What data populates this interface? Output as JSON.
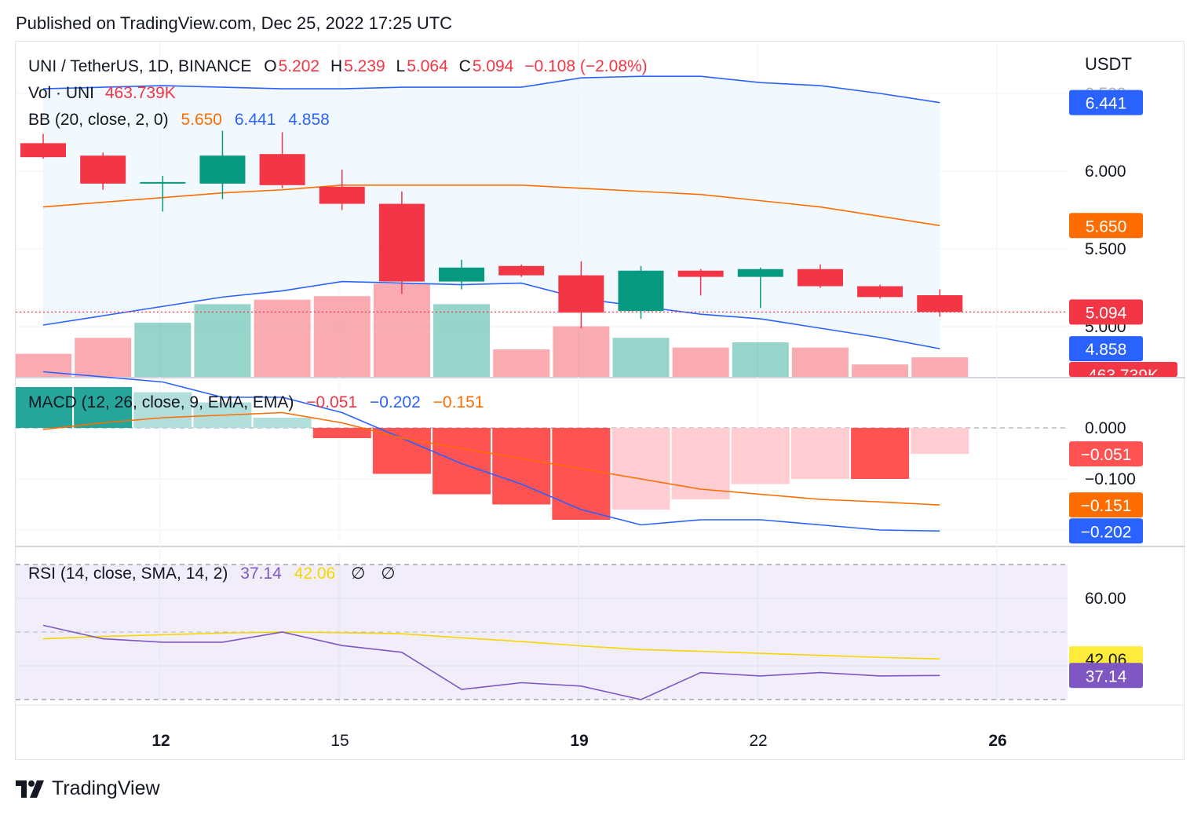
{
  "published": "Published on TradingView.com, Dec 25, 2022 17:25 UTC",
  "brand": "TradingView",
  "currency": "USDT",
  "legend": {
    "symbol": "UNI / TetherUS, 1D, BINANCE",
    "o_label": "O",
    "o_val": "5.202",
    "h_label": "H",
    "h_val": "5.239",
    "l_label": "L",
    "l_val": "5.064",
    "c_label": "C",
    "c_val": "5.094",
    "change": "−0.108 (−2.08%)",
    "vol_label": "Vol · UNI",
    "vol_val": "463.739K",
    "bb_label": "BB (20, close, 2, 0)",
    "bb_basis": "5.650",
    "bb_upper": "6.441",
    "bb_lower": "4.858",
    "macd_label": "MACD (12, 26, close, 9, EMA, EMA)",
    "macd_hist": "−0.051",
    "macd_line": "−0.202",
    "macd_signal": "−0.151",
    "rsi_label": "RSI (14, close, SMA, 14, 2)",
    "rsi_val": "37.14",
    "rsi_ma": "42.06",
    "rsi_na1": "∅",
    "rsi_na2": "∅"
  },
  "colors": {
    "up": "#089981",
    "down": "#f23645",
    "bb_basis": "#ff6d00",
    "bb_bands": "#2962ff",
    "macd": "#2962ff",
    "signal": "#ff6d00",
    "rsi": "#7e57c2",
    "rsi_ma": "#f5d700"
  },
  "chart_data": {
    "type": "candlestick",
    "x_ticks": [
      "12",
      "15",
      "19",
      "22",
      "26"
    ],
    "price_axis": {
      "ticks": [
        "6.000",
        "5.500",
        "5.000"
      ],
      "partial_tick": "6.500"
    },
    "macd_axis": {
      "ticks": [
        "0.000",
        "−0.100"
      ]
    },
    "rsi_axis": {
      "ticks": [
        "60.00"
      ]
    },
    "price_badges": {
      "upper": "6.441",
      "basis": "5.650",
      "close": "5.094",
      "lower": "4.858",
      "volume": "463.739K"
    },
    "macd_badges": {
      "hist": "−0.051",
      "signal": "−0.151",
      "macd": "−0.202"
    },
    "rsi_badges": {
      "ma": "42.06",
      "rsi": "37.14"
    },
    "candles": [
      {
        "o": 6.18,
        "h": 6.24,
        "l": 6.08,
        "c": 6.09
      },
      {
        "o": 6.1,
        "h": 6.12,
        "l": 5.88,
        "c": 5.92
      },
      {
        "o": 5.92,
        "h": 5.97,
        "l": 5.74,
        "c": 5.93
      },
      {
        "o": 5.92,
        "h": 6.26,
        "l": 5.82,
        "c": 6.1
      },
      {
        "o": 6.11,
        "h": 6.25,
        "l": 5.89,
        "c": 5.91
      },
      {
        "o": 5.9,
        "h": 6.01,
        "l": 5.75,
        "c": 5.79
      },
      {
        "o": 5.79,
        "h": 5.87,
        "l": 5.21,
        "c": 5.29
      },
      {
        "o": 5.29,
        "h": 5.43,
        "l": 5.24,
        "c": 5.38
      },
      {
        "o": 5.39,
        "h": 5.4,
        "l": 5.32,
        "c": 5.33
      },
      {
        "o": 5.33,
        "h": 5.42,
        "l": 4.99,
        "c": 5.09
      },
      {
        "o": 5.1,
        "h": 5.39,
        "l": 5.05,
        "c": 5.36
      },
      {
        "o": 5.36,
        "h": 5.37,
        "l": 5.2,
        "c": 5.32
      },
      {
        "o": 5.32,
        "h": 5.38,
        "l": 5.12,
        "c": 5.37
      },
      {
        "o": 5.37,
        "h": 5.4,
        "l": 5.25,
        "c": 5.26
      },
      {
        "o": 5.26,
        "h": 5.27,
        "l": 5.18,
        "c": 5.19
      },
      {
        "o": 5.202,
        "h": 5.239,
        "l": 5.064,
        "c": 5.094
      }
    ],
    "volume": [
      1.3,
      2.2,
      3.05,
      4.1,
      4.35,
      4.55,
      5.25,
      4.1,
      1.55,
      2.85,
      2.2,
      1.65,
      1.95,
      1.65,
      0.7,
      1.1
    ],
    "bb_upper": [
      6.53,
      6.54,
      6.55,
      6.54,
      6.53,
      6.53,
      6.54,
      6.54,
      6.54,
      6.6,
      6.61,
      6.61,
      6.57,
      6.55,
      6.5,
      6.441
    ],
    "bb_basis": [
      5.77,
      5.8,
      5.83,
      5.86,
      5.88,
      5.91,
      5.91,
      5.91,
      5.91,
      5.89,
      5.87,
      5.85,
      5.81,
      5.77,
      5.71,
      5.65
    ],
    "bb_lower": [
      5.01,
      5.07,
      5.13,
      5.19,
      5.23,
      5.29,
      5.28,
      5.27,
      5.28,
      5.18,
      5.13,
      5.08,
      5.05,
      4.99,
      4.93,
      4.858
    ],
    "macd_hist": [
      0.08,
      0.08,
      0.07,
      0.05,
      0.02,
      -0.02,
      -0.09,
      -0.13,
      -0.15,
      -0.18,
      -0.16,
      -0.14,
      -0.11,
      -0.1,
      -0.1,
      -0.051
    ],
    "macd_line": [
      0.11,
      0.1,
      0.09,
      0.06,
      0.06,
      0.03,
      -0.02,
      -0.07,
      -0.11,
      -0.16,
      -0.19,
      -0.18,
      -0.18,
      -0.19,
      -0.2,
      -0.202
    ],
    "macd_signal": [
      -0.003,
      0.01,
      0.02,
      0.025,
      0.03,
      0.01,
      -0.02,
      -0.04,
      -0.06,
      -0.08,
      -0.1,
      -0.12,
      -0.13,
      -0.14,
      -0.145,
      -0.151
    ],
    "rsi": [
      52,
      48,
      47,
      47,
      50,
      46,
      44,
      33,
      35,
      34,
      30,
      38,
      37,
      38,
      37,
      37.14
    ],
    "rsi_ma": [
      48,
      48.7,
      49.2,
      49.7,
      50,
      49.8,
      49.5,
      48.3,
      47.2,
      45.9,
      44.8,
      44.3,
      43.7,
      43.1,
      42.5,
      42.06
    ]
  }
}
